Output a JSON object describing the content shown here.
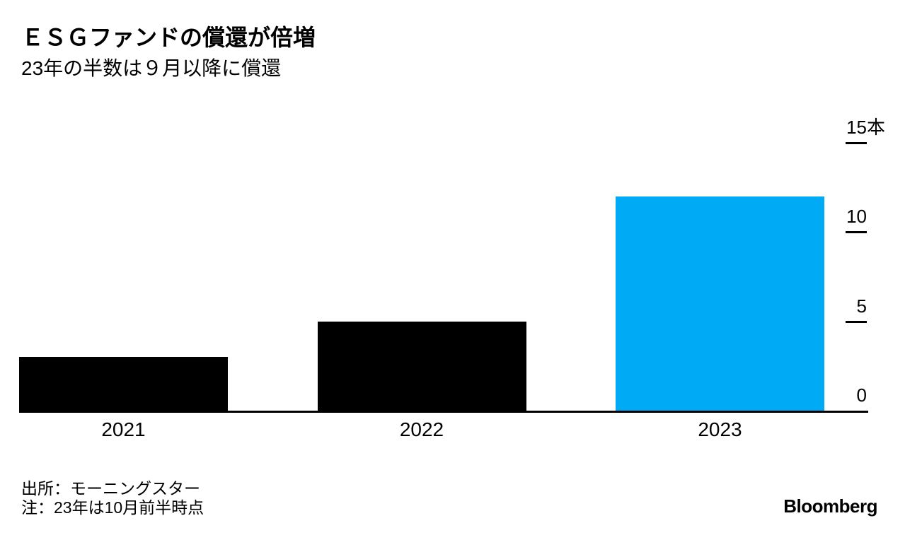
{
  "header": {
    "title": "ＥＳＧファンドの償還が倍増",
    "subtitle": "23年の半数は９月以降に償還"
  },
  "chart_data": {
    "type": "bar",
    "title": "ＥＳＧファンドの償還が倍増",
    "subtitle": "23年の半数は９月以降に償還",
    "categories": [
      "2021",
      "2022",
      "2023"
    ],
    "values": [
      3,
      5,
      12
    ],
    "unit": "本",
    "bar_colors": [
      "#000000",
      "#000000",
      "#00aaf5"
    ],
    "ylim": [
      0,
      15
    ],
    "y_ticks": [
      {
        "value": 0,
        "label": "0",
        "suffix": ""
      },
      {
        "value": 5,
        "label": "5",
        "suffix": ""
      },
      {
        "value": 10,
        "label": "10",
        "suffix": ""
      },
      {
        "value": 15,
        "label": "15",
        "suffix": "本"
      }
    ],
    "axis_position": "right",
    "grid": false,
    "xlabel": "",
    "ylabel": ""
  },
  "footer": {
    "source": "出所：モーニングスター",
    "note": "注：23年は10月前半時点",
    "brand": "Bloomberg"
  },
  "colors": {
    "background": "#ffffff",
    "bar_black": "#000000",
    "accent_blue": "#00aaf5",
    "axis": "#000000"
  }
}
